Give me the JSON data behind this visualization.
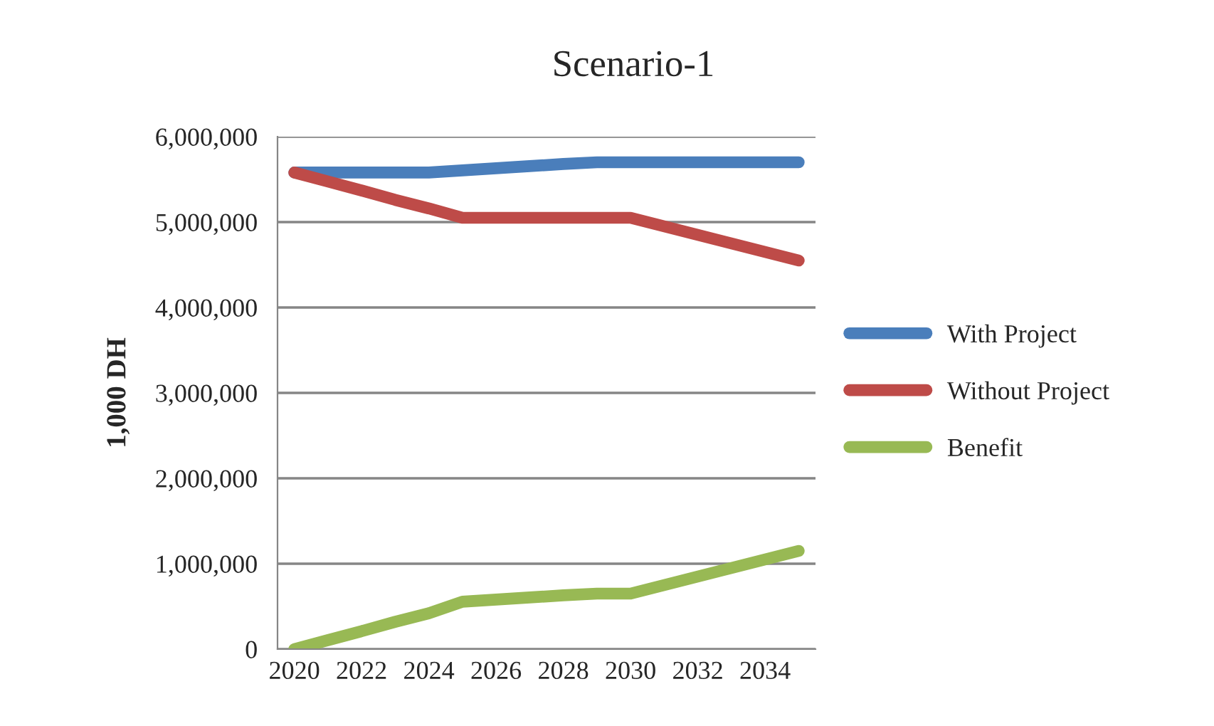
{
  "chart_data": {
    "type": "line",
    "title": "Scenario-1",
    "ylabel": "1,000 DH",
    "categories": [
      "2020",
      null,
      "2022",
      null,
      "2024",
      null,
      "2026",
      null,
      "2028",
      null,
      "2030",
      null,
      "2032",
      null,
      "2034",
      null
    ],
    "series": [
      {
        "name": "With Project",
        "color": "#4a7ebb",
        "values": [
          5580000,
          5580000,
          5580000,
          5580000,
          5580000,
          5605000,
          5630000,
          5655000,
          5680000,
          5700000,
          5700000,
          5700000,
          5700000,
          5700000,
          5700000,
          5700000
        ]
      },
      {
        "name": "Without Project",
        "color": "#be4b48",
        "values": [
          5580000,
          5475000,
          5370000,
          5260000,
          5160000,
          5050000,
          5050000,
          5050000,
          5050000,
          5050000,
          5050000,
          4950000,
          4850000,
          4750000,
          4650000,
          4550000
        ]
      },
      {
        "name": "Benefit",
        "color": "#98b954",
        "values": [
          0,
          105000,
          210000,
          320000,
          420000,
          555000,
          580000,
          605000,
          630000,
          650000,
          650000,
          750000,
          850000,
          950000,
          1050000,
          1150000
        ]
      }
    ],
    "ylim": [
      0,
      6000000
    ],
    "yticks": [
      0,
      {
        "value": 1000000,
        "label": "1,000,000"
      },
      {
        "value": 2000000,
        "label": "2,000,000"
      },
      {
        "value": 3000000,
        "label": "3,000,000"
      },
      {
        "value": 4000000,
        "label": "4,000,000"
      },
      {
        "value": 5000000,
        "label": "5,000,000"
      },
      {
        "value": 6000000,
        "label": "6,000,000"
      }
    ],
    "grid": "y",
    "legend": "right",
    "marker": "none",
    "line_style": "solid"
  }
}
